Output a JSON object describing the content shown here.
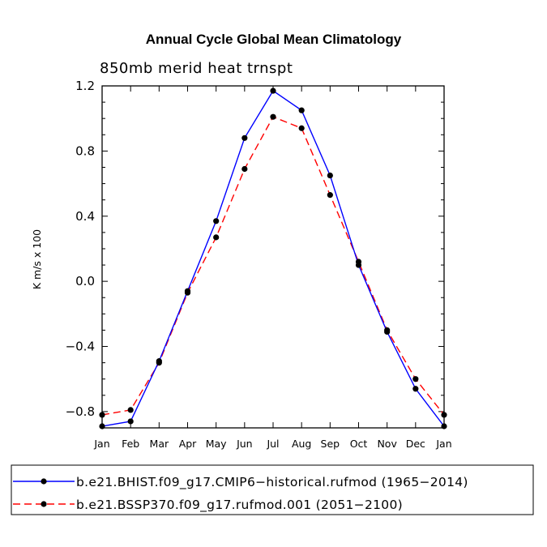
{
  "chart_data": {
    "type": "line",
    "title": "Annual Cycle Global Mean Climatology",
    "subtitle": "850mb merid heat trnspt",
    "ylabel": "K m/s x 100",
    "xlabel": "",
    "ylim": [
      -0.9,
      1.2
    ],
    "yticks": [
      {
        "value": 1.2,
        "label": "1.2"
      },
      {
        "value": 0.8,
        "label": "0.8"
      },
      {
        "value": 0.4,
        "label": "0.4"
      },
      {
        "value": 0.0,
        "label": "0.0"
      },
      {
        "value": -0.4,
        "label": "−0.4"
      },
      {
        "value": -0.8,
        "label": "−0.8"
      }
    ],
    "categories": [
      "Jan",
      "Feb",
      "Mar",
      "Apr",
      "May",
      "Jun",
      "Jul",
      "Aug",
      "Sep",
      "Oct",
      "Nov",
      "Dec",
      "Jan"
    ],
    "series": [
      {
        "name": "b.e21.BHIST.f09_g17.CMIP6−historical.rufmod (1965−2014)",
        "color": "#0000ff",
        "dash": "solid",
        "values": [
          -0.89,
          -0.86,
          -0.49,
          -0.06,
          0.37,
          0.88,
          1.17,
          1.05,
          0.65,
          0.1,
          -0.31,
          -0.66,
          -0.89
        ]
      },
      {
        "name": "b.e21.BSSP370.f09_g17.rufmod.001 (2051−2100)",
        "color": "#ff0000",
        "dash": "dashed",
        "values": [
          -0.82,
          -0.79,
          -0.5,
          -0.07,
          0.27,
          0.69,
          1.01,
          0.94,
          0.53,
          0.12,
          -0.3,
          -0.6,
          -0.82
        ]
      }
    ]
  }
}
